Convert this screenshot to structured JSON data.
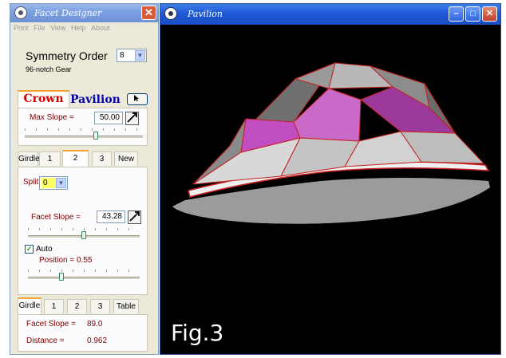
{
  "designer": {
    "title": "Facet Designer",
    "menu": [
      "Print",
      "File",
      "View",
      "Help",
      "About"
    ],
    "symmetry_label": "Symmetry Order",
    "symmetry_value": "8",
    "gear_text": "96-notch Gear",
    "crown_tab": "Crown",
    "pavilion_tab": "Pavilion",
    "max_slope_label": "Max Slope =",
    "max_slope_value": "50.00",
    "max_slope_level": 0.6,
    "tier_tabs": [
      "Girdle",
      "1",
      "2",
      "3",
      "New"
    ],
    "tier_selected": "2",
    "split_label": "Split",
    "split_value": "0",
    "facet_slope_label": "Facet Slope =",
    "facet_slope_value": "43.28",
    "facet_slope_level": 0.5,
    "auto_label": "Auto",
    "auto_checked": true,
    "position_label": "Position = 0.55",
    "position_level": 0.3,
    "bottom_tabs": [
      "Girdle",
      "1",
      "2",
      "3",
      "Table"
    ],
    "girdle_facet_slope_label": "Facet Slope =",
    "girdle_facet_slope_value": "89.0",
    "distance_label": "Distance =",
    "distance_value": "0.962"
  },
  "pavilion_window": {
    "title": "Pavilion",
    "figure_label": "Fig.3"
  },
  "colors": {
    "facet_magenta": "#c04ec0",
    "facet_light": "#c8c8c8",
    "facet_dark": "#7c7c7c",
    "girdle_red": "#cc1a1a",
    "titlebar_blue": "#1c56d4"
  }
}
